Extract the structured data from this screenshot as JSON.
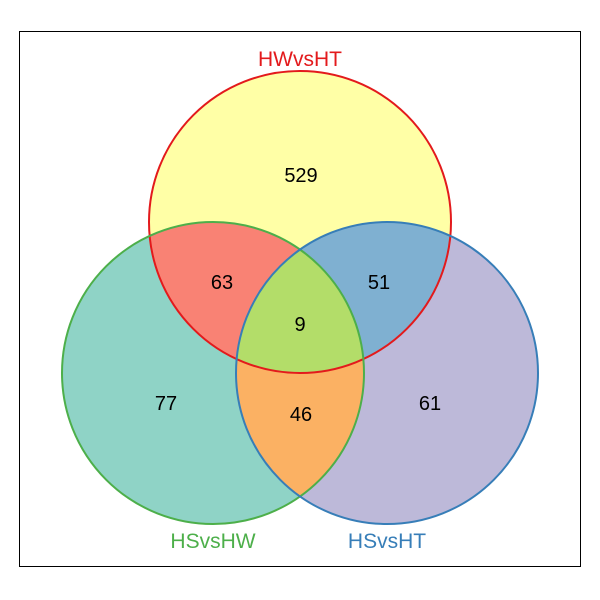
{
  "sets": {
    "top": {
      "label": "HWvsHT",
      "color": "#e31a1c"
    },
    "left": {
      "label": "HSvsHW",
      "color": "#4daf4a"
    },
    "right": {
      "label": "HSvsHT",
      "color": "#377eb8"
    }
  },
  "regions": {
    "top_only": "529",
    "left_only": "77",
    "right_only": "61",
    "top_left": "63",
    "top_right": "51",
    "left_right": "46",
    "all_three": "9"
  },
  "fills": {
    "top_only": "#ffffa6",
    "left_only": "#8fd3c6",
    "right_only": "#bdb9d9",
    "top_left": "#f98274",
    "top_right": "#7fb0d1",
    "left_right": "#fbb163",
    "all_three": "#b3dd69"
  }
}
